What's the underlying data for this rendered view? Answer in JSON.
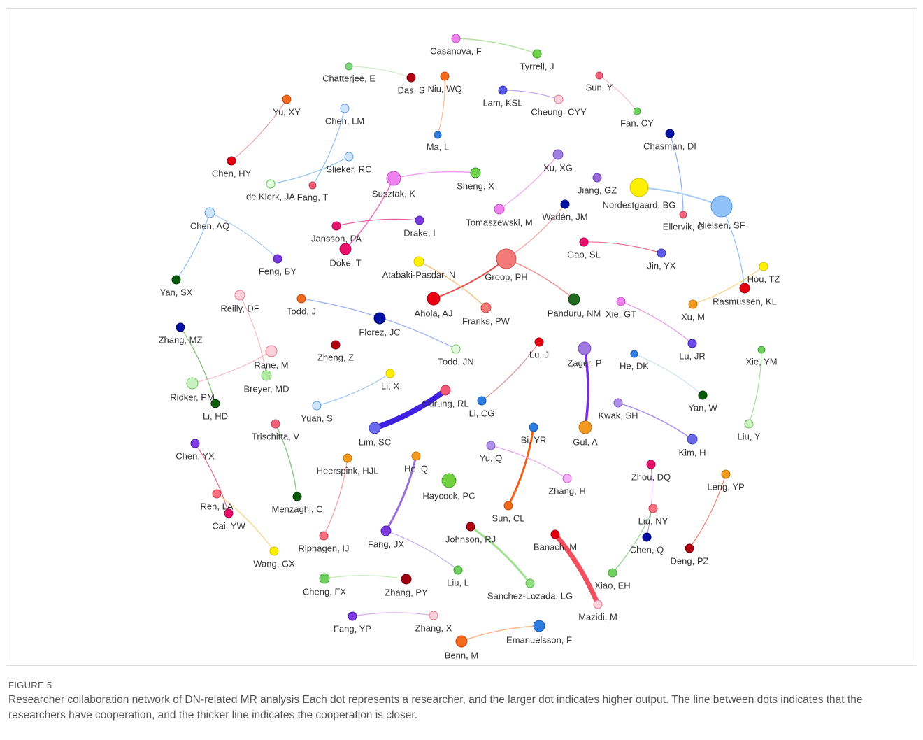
{
  "figure": {
    "label": "FIGURE 5",
    "caption": "Researcher collaboration network of DN-related MR analysis Each dot represents a researcher, and the larger dot indicates higher output. The line between dots indicates that the researchers have cooperation, and the thicker line indicates the cooperation is closer."
  },
  "nodes": [
    {
      "label": "Casanova, F"
    },
    {
      "label": "Tyrrell, J"
    },
    {
      "label": "Chatterjee, E"
    },
    {
      "label": "Das, S"
    },
    {
      "label": "Niu, WQ"
    },
    {
      "label": "Ma, L"
    },
    {
      "label": "Lam, KSL"
    },
    {
      "label": "Cheung, CYY"
    },
    {
      "label": "Sun, Y"
    },
    {
      "label": "Fan, CY"
    },
    {
      "label": "Yu, XY"
    },
    {
      "label": "Chen, HY"
    },
    {
      "label": "Chen, LM"
    },
    {
      "label": "Fang, T"
    },
    {
      "label": "Slieker, RC"
    },
    {
      "label": "de Klerk, JA"
    },
    {
      "label": "Chasman, DI"
    },
    {
      "label": "Ellervik, C"
    },
    {
      "label": "Nielsen, SF"
    },
    {
      "label": "Nordestgaard, BG"
    },
    {
      "label": "Jiang, GZ"
    },
    {
      "label": "Xu, XG"
    },
    {
      "label": "Tomaszewski, M"
    },
    {
      "label": "Wadén, JM"
    },
    {
      "label": "Susztak, K"
    },
    {
      "label": "Sheng, X"
    },
    {
      "label": "Jansson, PA"
    },
    {
      "label": "Drake, I"
    },
    {
      "label": "Doke, T"
    },
    {
      "label": "Chen, AQ"
    },
    {
      "label": "Feng, BY"
    },
    {
      "label": "Yan, SX"
    },
    {
      "label": "Groop, PH"
    },
    {
      "label": "Atabaki-Pasdar, N"
    },
    {
      "label": "Franks, PW"
    },
    {
      "label": "Ahola, AJ"
    },
    {
      "label": "Panduru, NM"
    },
    {
      "label": "Gao, SL"
    },
    {
      "label": "Jin, YX"
    },
    {
      "label": "Hou, TZ"
    },
    {
      "label": "Rasmussen, KL"
    },
    {
      "label": "Xu, M"
    },
    {
      "label": "Xie, GT"
    },
    {
      "label": "Lu, JR"
    },
    {
      "label": "Reilly, DF"
    },
    {
      "label": "Todd, J"
    },
    {
      "label": "Florez, JC"
    },
    {
      "label": "Todd, JN"
    },
    {
      "label": "Zheng, Z"
    },
    {
      "label": "Zhang, MZ"
    },
    {
      "label": "Rane, M"
    },
    {
      "label": "Breyer, MD"
    },
    {
      "label": "Ridker, PM"
    },
    {
      "label": "Li, HD"
    },
    {
      "label": "Li, X"
    },
    {
      "label": "Gurung, RL"
    },
    {
      "label": "Lim, SC"
    },
    {
      "label": "Yuan, S"
    },
    {
      "label": "Lu, J"
    },
    {
      "label": "Li, CG"
    },
    {
      "label": "Zager, P"
    },
    {
      "label": "Gul, A"
    },
    {
      "label": "He, DK"
    },
    {
      "label": "Yan, W"
    },
    {
      "label": "Xie, YM"
    },
    {
      "label": "Liu, Y"
    },
    {
      "label": "Kwak, SH"
    },
    {
      "label": "Kim, H"
    },
    {
      "label": "Trischitta, V"
    },
    {
      "label": "Menzaghi, C"
    },
    {
      "label": "Chen, YX"
    },
    {
      "label": "Ren, LA"
    },
    {
      "label": "Cai, YW"
    },
    {
      "label": "Wang, GX"
    },
    {
      "label": "Heerspink, HJL"
    },
    {
      "label": "Riphagen, IJ"
    },
    {
      "label": "He, Q"
    },
    {
      "label": "Fang, JX"
    },
    {
      "label": "Liu, L"
    },
    {
      "label": "Haycock, PC"
    },
    {
      "label": "Bi, YR"
    },
    {
      "label": "Sun, CL"
    },
    {
      "label": "Yu, Q"
    },
    {
      "label": "Zhang, H"
    },
    {
      "label": "Zhou, DQ"
    },
    {
      "label": "Chen, Q"
    },
    {
      "label": "Liu, NY"
    },
    {
      "label": "Xiao, EH"
    },
    {
      "label": "Leng, YP"
    },
    {
      "label": "Deng, PZ"
    },
    {
      "label": "Johnson, RJ"
    },
    {
      "label": "Sanchez-Lozada, LG"
    },
    {
      "label": "Banach, M"
    },
    {
      "label": "Mazidi, M"
    },
    {
      "label": "Cheng, FX"
    },
    {
      "label": "Zhang, PY"
    },
    {
      "label": "Fang, YP"
    },
    {
      "label": "Zhang, X"
    },
    {
      "label": "Benn, M"
    },
    {
      "label": "Emanuelsson, F"
    }
  ]
}
